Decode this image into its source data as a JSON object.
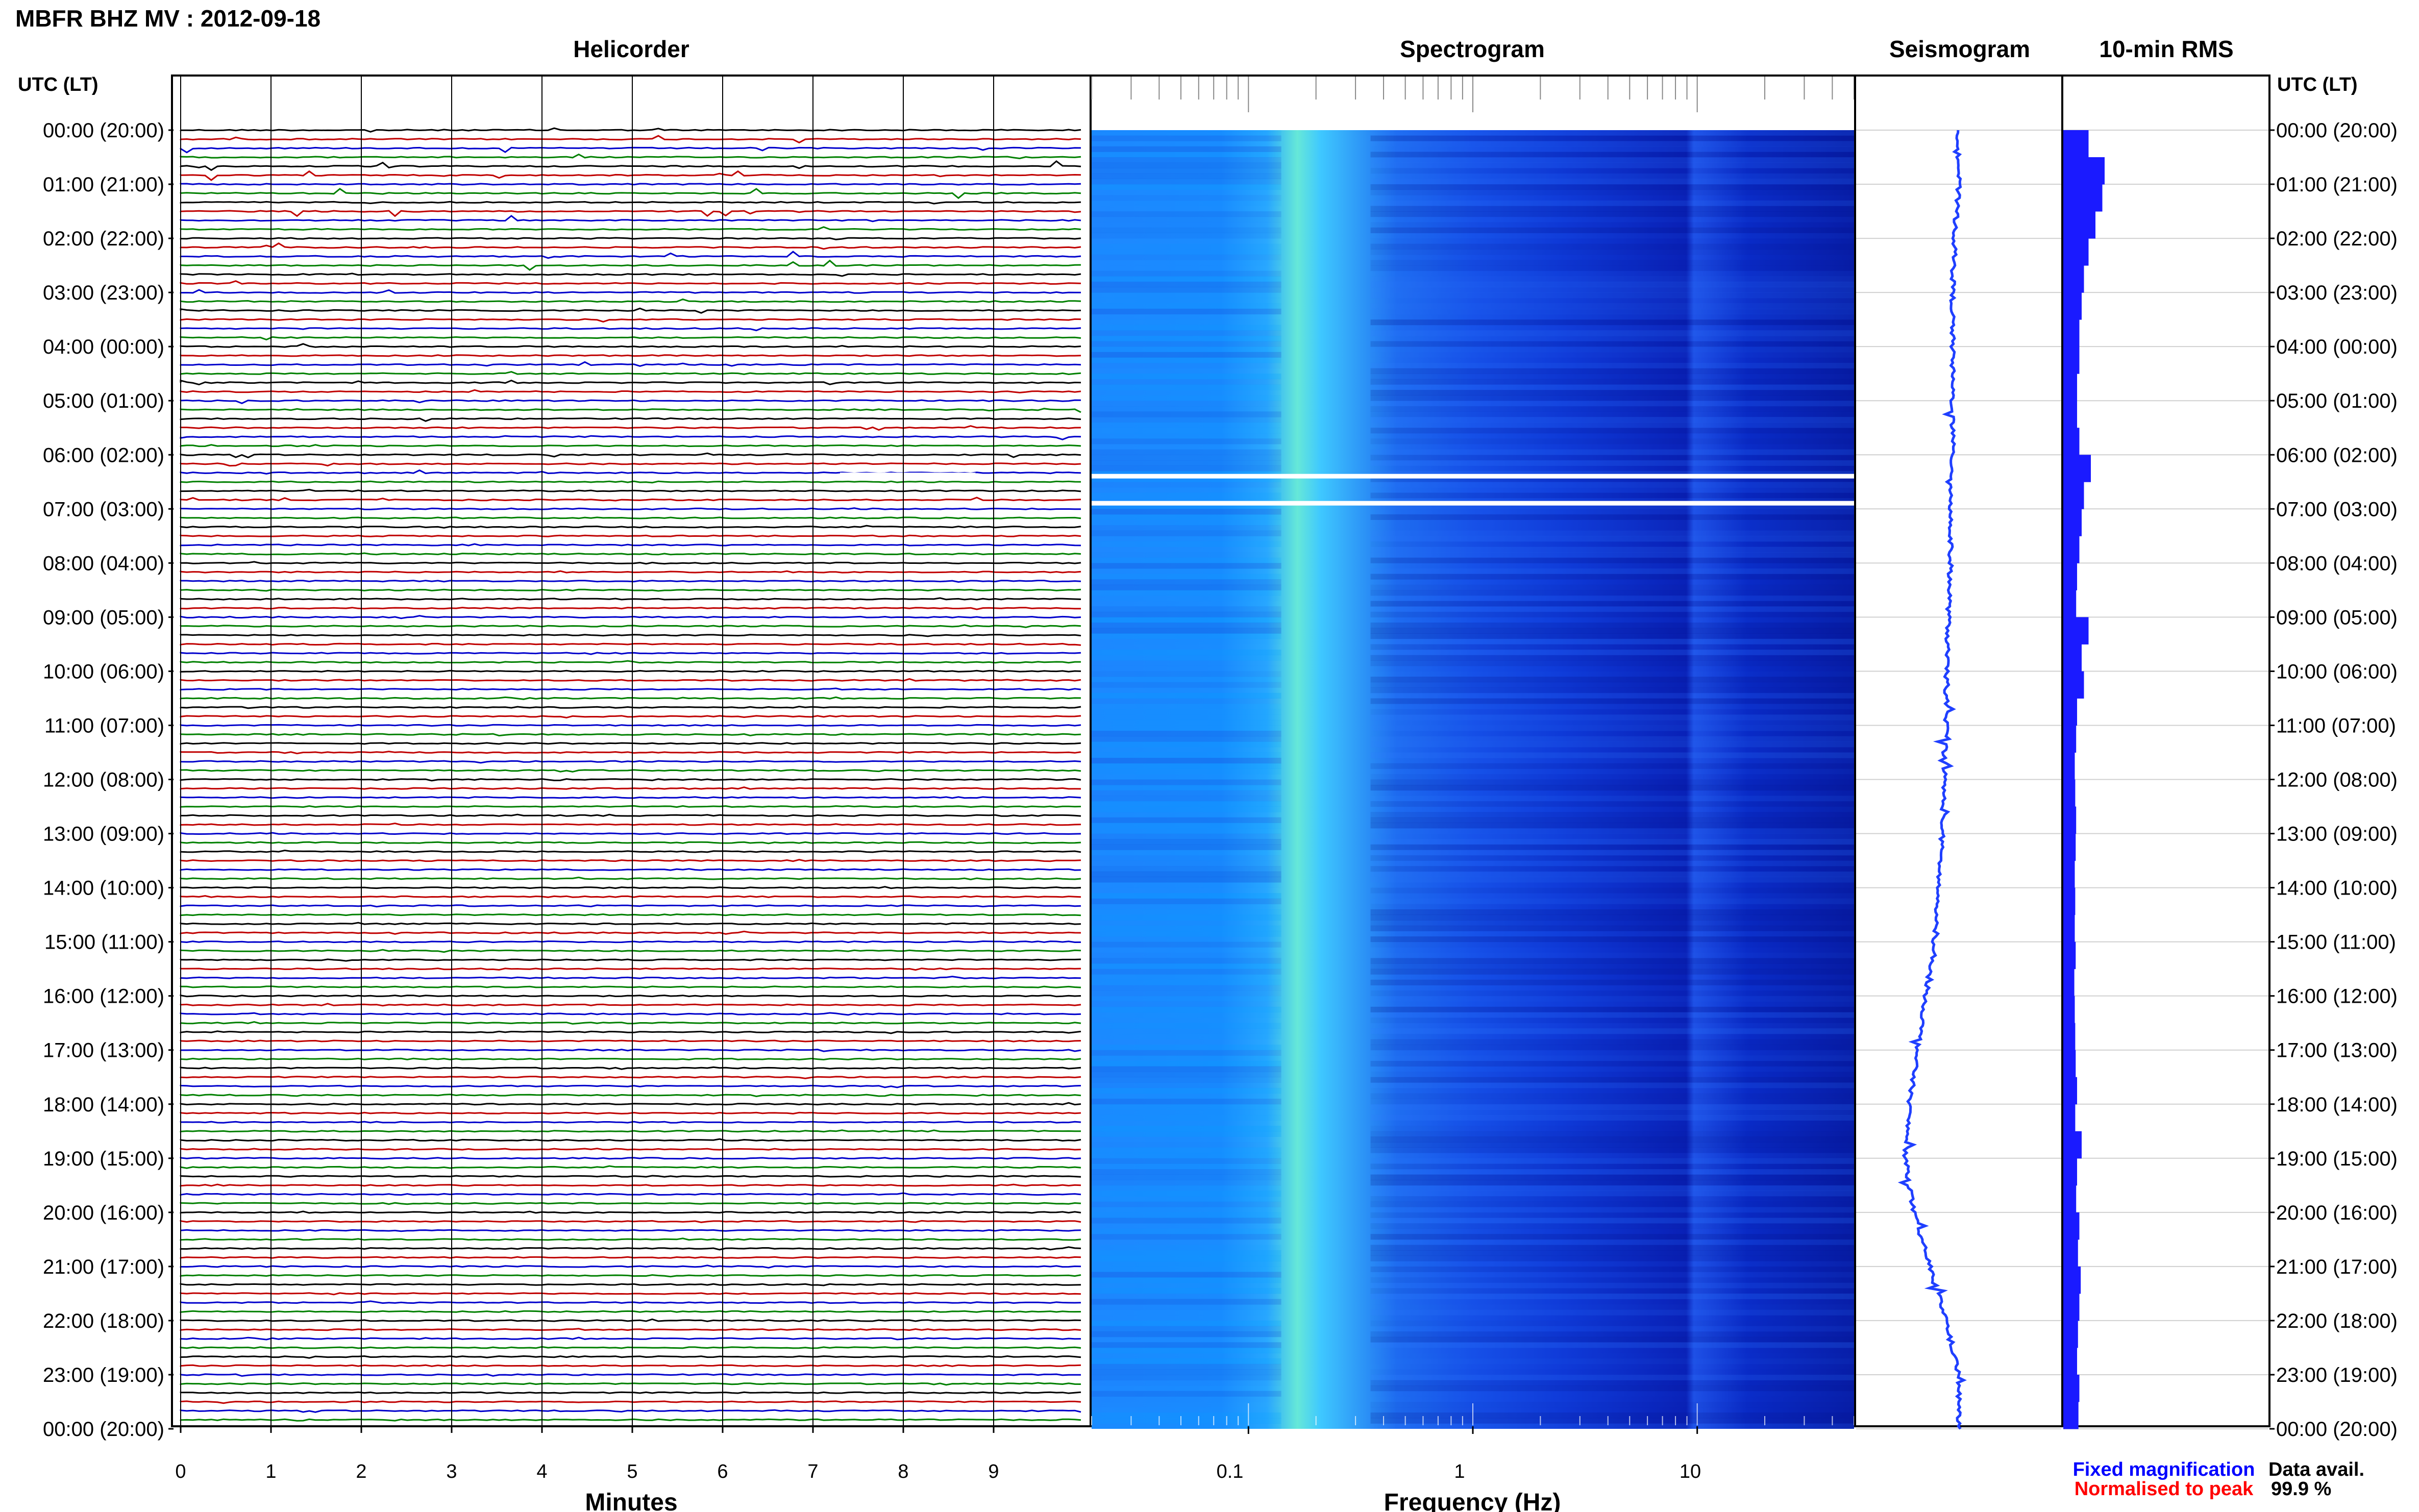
{
  "header": {
    "title": "MBFR BHZ MV : 2012-09-18",
    "panel_titles": [
      "Helicorder",
      "Spectrogram",
      "Seismogram",
      "10-min RMS"
    ],
    "utc_label_left": "UTC (LT)",
    "utc_label_right": "UTC (LT)"
  },
  "time_labels": [
    "00:00 (20:00)",
    "01:00 (21:00)",
    "02:00 (22:00)",
    "03:00 (23:00)",
    "04:00 (00:00)",
    "05:00 (01:00)",
    "06:00 (02:00)",
    "07:00 (03:00)",
    "08:00 (04:00)",
    "09:00 (05:00)",
    "10:00 (06:00)",
    "11:00 (07:00)",
    "12:00 (08:00)",
    "13:00 (09:00)",
    "14:00 (10:00)",
    "15:00 (11:00)",
    "16:00 (12:00)",
    "17:00 (13:00)",
    "18:00 (14:00)",
    "19:00 (15:00)",
    "20:00 (16:00)",
    "21:00 (17:00)",
    "22:00 (18:00)",
    "23:00 (19:00)",
    "00:00 (20:00)"
  ],
  "footer": {
    "minutes_ticks": [
      "0",
      "1",
      "2",
      "3",
      "4",
      "5",
      "6",
      "7",
      "8",
      "9"
    ],
    "minutes_label": "Minutes",
    "freq_ticks": [
      "0.1",
      "1",
      "10"
    ],
    "freq_label": "Frequency (Hz)",
    "legend_fixed": "Fixed magnification",
    "legend_normalised": "Normalised to peak",
    "data_avail_label": "Data avail.",
    "data_avail_value": "99.9 %"
  },
  "colors": {
    "trace_cycle": [
      "#000000",
      "#c00000",
      "#0000cc",
      "#008000"
    ],
    "legend_fixed": "#0000ff",
    "legend_normalised": "#ff0000",
    "seismogram": "#1f3fff",
    "rms_bar": "#1a1aff",
    "spectrogram_low": "#00008b",
    "spectrogram_high": "#66ffd9"
  },
  "chart_data": [
    {
      "type": "line",
      "panel": "Helicorder",
      "xlabel": "Minutes",
      "xlim": [
        0,
        10
      ],
      "x_ticks": [
        0,
        1,
        2,
        3,
        4,
        5,
        6,
        7,
        8,
        9
      ],
      "rows_per_hour": 6,
      "row_minutes": 10,
      "hours": 24,
      "data_gaps": [
        {
          "hour": 6,
          "minute_start": 7.3,
          "minute_end": 8.8
        },
        {
          "hour": 6,
          "minute_start": 7.3,
          "minute_end": 7.9
        }
      ]
    },
    {
      "type": "heatmap",
      "panel": "Spectrogram",
      "xlabel": "Frequency (Hz)",
      "x_scale": "log",
      "xlim": [
        0.02,
        50
      ],
      "x_ticks": [
        0.1,
        1,
        10
      ],
      "peak_band_hz": [
        0.15,
        0.3
      ],
      "white_gap_hours": [
        6.4,
        6.9
      ]
    },
    {
      "type": "line",
      "panel": "Seismogram",
      "hours": [
        0,
        1,
        2,
        3,
        4,
        5,
        6,
        7,
        8,
        9,
        10,
        11,
        12,
        13,
        14,
        15,
        16,
        17,
        18,
        19,
        20,
        21,
        22,
        23,
        24
      ],
      "trend": [
        0.5,
        0.5,
        0.48,
        0.47,
        0.47,
        0.47,
        0.47,
        0.46,
        0.46,
        0.45,
        0.44,
        0.44,
        0.43,
        0.42,
        0.4,
        0.38,
        0.34,
        0.3,
        0.26,
        0.24,
        0.28,
        0.36,
        0.44,
        0.5,
        0.5
      ]
    },
    {
      "type": "bar",
      "panel": "10-min RMS",
      "hours": [
        0,
        0.5,
        1,
        1.5,
        2,
        2.5,
        3,
        3.5,
        4,
        4.5,
        5,
        5.5,
        6,
        6.5,
        7,
        7.5,
        8,
        8.5,
        9,
        9.5,
        10,
        10.5,
        11,
        11.5,
        12,
        12.5,
        13,
        13.5,
        14,
        14.5,
        15,
        15.5,
        16,
        16.5,
        17,
        17.5,
        18,
        18.5,
        19,
        19.5,
        20,
        20.5,
        21,
        21.5,
        22,
        22.5,
        23,
        23.5
      ],
      "values": [
        0.55,
        0.9,
        0.85,
        0.7,
        0.55,
        0.45,
        0.4,
        0.35,
        0.35,
        0.3,
        0.3,
        0.35,
        0.6,
        0.45,
        0.4,
        0.35,
        0.3,
        0.28,
        0.55,
        0.4,
        0.45,
        0.3,
        0.28,
        0.25,
        0.26,
        0.28,
        0.27,
        0.25,
        0.26,
        0.25,
        0.27,
        0.24,
        0.25,
        0.26,
        0.27,
        0.3,
        0.26,
        0.4,
        0.3,
        0.28,
        0.35,
        0.32,
        0.38,
        0.35,
        0.32,
        0.3,
        0.35,
        0.33
      ]
    }
  ]
}
